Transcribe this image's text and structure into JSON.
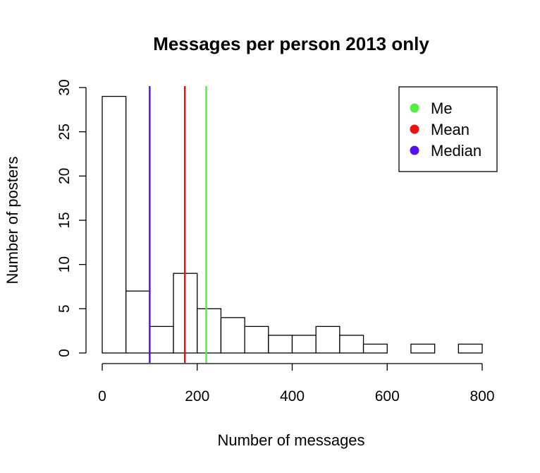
{
  "chart_data": {
    "type": "bar",
    "title": "Messages per person 2013 only",
    "xlabel": "Number of messages",
    "ylabel": "Number of posters",
    "xlim": [
      0,
      800
    ],
    "ylim": [
      0,
      30
    ],
    "x_ticks": [
      0,
      200,
      400,
      600,
      800
    ],
    "y_ticks": [
      0,
      5,
      10,
      15,
      20,
      25,
      30
    ],
    "bins": [
      {
        "start": 0,
        "end": 50,
        "count": 29
      },
      {
        "start": 50,
        "end": 100,
        "count": 7
      },
      {
        "start": 100,
        "end": 150,
        "count": 3
      },
      {
        "start": 150,
        "end": 200,
        "count": 9
      },
      {
        "start": 200,
        "end": 250,
        "count": 5
      },
      {
        "start": 250,
        "end": 300,
        "count": 4
      },
      {
        "start": 300,
        "end": 350,
        "count": 3
      },
      {
        "start": 350,
        "end": 400,
        "count": 2
      },
      {
        "start": 400,
        "end": 450,
        "count": 2
      },
      {
        "start": 450,
        "end": 500,
        "count": 3
      },
      {
        "start": 500,
        "end": 550,
        "count": 2
      },
      {
        "start": 550,
        "end": 600,
        "count": 1
      },
      {
        "start": 600,
        "end": 650,
        "count": 0
      },
      {
        "start": 650,
        "end": 700,
        "count": 1
      },
      {
        "start": 700,
        "end": 750,
        "count": 0
      },
      {
        "start": 750,
        "end": 800,
        "count": 1
      }
    ],
    "reference_lines": [
      {
        "name": "Me",
        "x": 219,
        "color": "#55ee44"
      },
      {
        "name": "Mean",
        "x": 174,
        "color": "#ee1111"
      },
      {
        "name": "Median",
        "x": 100,
        "color": "#5511ee"
      }
    ],
    "legend": {
      "position": "top-right",
      "entries": [
        {
          "label": "Me",
          "color": "#55ee44"
        },
        {
          "label": "Mean",
          "color": "#ee1111"
        },
        {
          "label": "Median",
          "color": "#5511ee"
        }
      ]
    },
    "grid": false
  }
}
